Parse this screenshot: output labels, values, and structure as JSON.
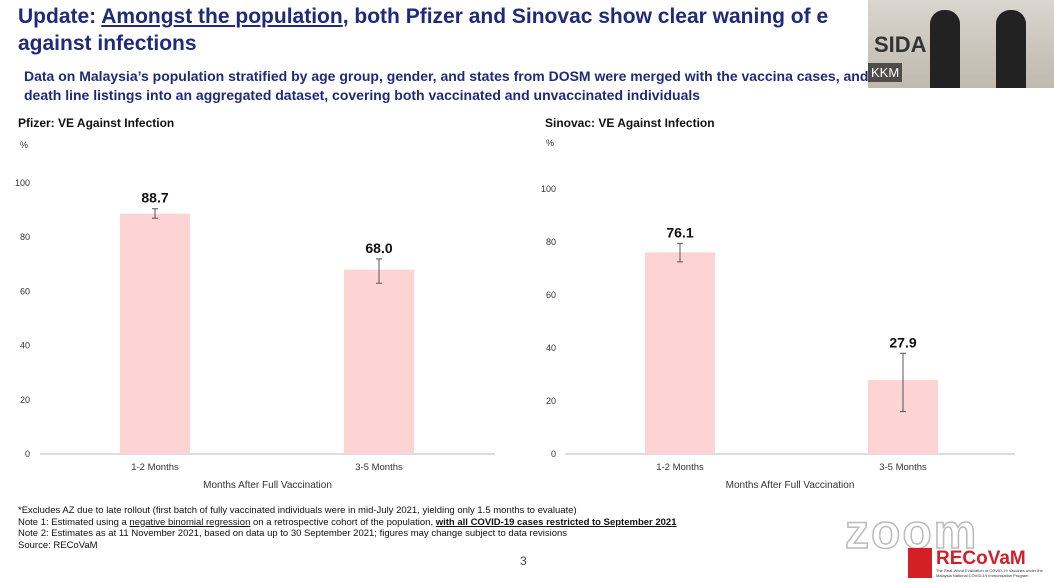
{
  "slide": {
    "title_prefix": "Update: ",
    "title_underlined": "Amongst the population",
    "title_rest": ", both Pfizer and Sinovac show clear waning of e",
    "title_line2": "against infections",
    "subtitle": "Data on Malaysia’s population stratified by age group, gender, and states from DOSM were merged with the vaccina cases, and death line listings into an aggregated dataset, covering both vaccinated and unvaccinated individuals",
    "notes": {
      "n0": "*Excludes AZ due to late rollout (first batch of fully vaccinated individuals were in mid-July 2021, yielding only 1.5 months to evaluate)",
      "n1a": "Note 1: Estimated using a ",
      "n1b": "negative binomial regression",
      "n1c": " on a retrospective cohort of the population, ",
      "n1d": "with all COVID-19 cases restricted to September 2021",
      "n2": "Note 2: Estimates as at 11 November 2021, based on data up to 30 September 2021; figures may change subject to data revisions",
      "n3": "Source: RECoVaM"
    },
    "page_number": "3"
  },
  "video": {
    "label": "KKM",
    "backdrop_text": "SIDA"
  },
  "zoom_watermark": "zoom",
  "logo": {
    "name": "RECoVaM",
    "tagline": "The Real-World Evaluation of COVID-19 Vaccines under the Malaysia National COVID-19 Immunisation Program"
  },
  "colors": {
    "bar": "#fdd3d3",
    "title": "#1f2a7a"
  },
  "chart_data": [
    {
      "type": "bar",
      "title": "Pfizer: VE Against Infection",
      "ylabel": "%",
      "xlabel": "Months After Full Vaccination",
      "ylim": [
        0,
        100
      ],
      "yticks": [
        0,
        20,
        40,
        60,
        80,
        100
      ],
      "categories": [
        "1-2 Months",
        "3-5 Months"
      ],
      "values": [
        88.7,
        68.0
      ],
      "labels": [
        "88.7",
        "68.0"
      ],
      "error_low": [
        87,
        63
      ],
      "error_high": [
        90.5,
        72
      ],
      "grid": false
    },
    {
      "type": "bar",
      "title": "Sinovac: VE Against Infection",
      "ylabel": "%",
      "xlabel": "Months After Full Vaccination",
      "ylim": [
        0,
        100
      ],
      "yticks": [
        0,
        20,
        40,
        60,
        80,
        100
      ],
      "categories": [
        "1-2 Months",
        "3-5 Months"
      ],
      "values": [
        76.1,
        27.9
      ],
      "labels": [
        "76.1",
        "27.9"
      ],
      "error_low": [
        72.5,
        16
      ],
      "error_high": [
        79.5,
        38
      ],
      "grid": false
    }
  ]
}
